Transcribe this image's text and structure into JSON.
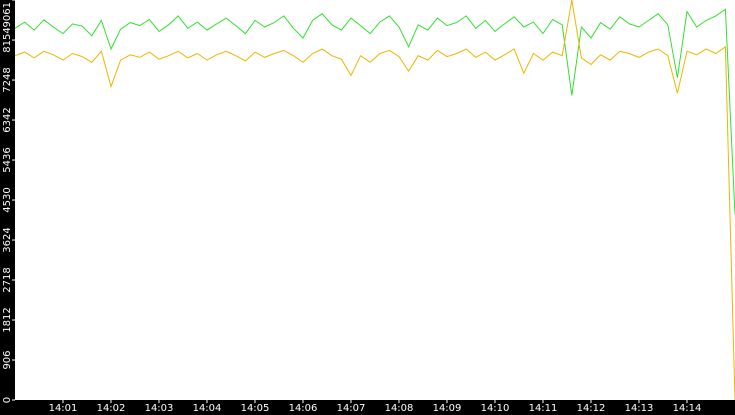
{
  "chart_data": {
    "type": "line",
    "x": [
      0,
      0.2,
      0.4,
      0.6,
      0.8,
      1,
      1.2,
      1.4,
      1.6,
      1.8,
      2,
      2.2,
      2.4,
      2.6,
      2.8,
      3,
      3.2,
      3.4,
      3.6,
      3.8,
      4,
      4.2,
      4.4,
      4.6,
      4.8,
      5,
      5.2,
      5.4,
      5.6,
      5.8,
      6,
      6.2,
      6.4,
      6.6,
      6.8,
      7,
      7.2,
      7.4,
      7.6,
      7.8,
      8,
      8.2,
      8.4,
      8.6,
      8.8,
      9,
      9.2,
      9.4,
      9.6,
      9.8,
      10,
      10.2,
      10.4,
      10.6,
      10.8,
      11,
      11.2,
      11.4,
      11.6,
      11.8,
      12,
      12.2,
      12.4,
      12.6,
      12.8,
      13,
      13.2,
      13.4,
      13.6,
      13.8,
      14,
      14.2,
      14.4,
      14.6,
      14.8,
      15
    ],
    "series": [
      {
        "color": "#33e02f",
        "values": [
          8420,
          8560,
          8380,
          8610,
          8450,
          8300,
          8520,
          8470,
          8250,
          8600,
          7950,
          8400,
          8550,
          8480,
          8620,
          8350,
          8500,
          8700,
          8420,
          8560,
          8380,
          8520,
          8650,
          8480,
          8300,
          8600,
          8450,
          8550,
          8700,
          8420,
          8200,
          8600,
          8750,
          8500,
          8380,
          8650,
          8480,
          8300,
          8560,
          8700,
          8450,
          8000,
          8500,
          8380,
          8650,
          8480,
          8550,
          8700,
          8420,
          8600,
          8350,
          8520,
          8680,
          8450,
          8560,
          8300,
          8620,
          8500,
          6900,
          8450,
          8200,
          8550,
          8400,
          8680,
          8520,
          8450,
          8600,
          8750,
          8500,
          7300,
          8800,
          8450,
          8600,
          8700,
          8850,
          4200
        ]
      },
      {
        "color": "#f0b400",
        "values": [
          7800,
          7880,
          7750,
          7900,
          7820,
          7700,
          7850,
          7780,
          7650,
          7900,
          7100,
          7700,
          7820,
          7760,
          7880,
          7720,
          7800,
          7900,
          7750,
          7850,
          7700,
          7820,
          7900,
          7800,
          7680,
          7880,
          7760,
          7850,
          7920,
          7800,
          7650,
          7850,
          7950,
          7800,
          7720,
          7350,
          7800,
          7650,
          7850,
          7920,
          7780,
          7450,
          7800,
          7700,
          7920,
          7780,
          7850,
          7950,
          7760,
          7880,
          7700,
          7820,
          7950,
          7400,
          7850,
          7700,
          7880,
          7800,
          9061,
          7750,
          7600,
          7820,
          7700,
          7900,
          7850,
          7760,
          7880,
          7950,
          7800,
          6950,
          7900,
          7820,
          7950,
          7850,
          8000,
          0
        ]
      }
    ],
    "xlim": [
      0,
      15
    ],
    "xticks": [
      {
        "value": 1,
        "label": "14:01"
      },
      {
        "value": 2,
        "label": "14:02"
      },
      {
        "value": 3,
        "label": "14:03"
      },
      {
        "value": 4,
        "label": "14:04"
      },
      {
        "value": 5,
        "label": "14:05"
      },
      {
        "value": 6,
        "label": "14:06"
      },
      {
        "value": 7,
        "label": "14:07"
      },
      {
        "value": 8,
        "label": "14:08"
      },
      {
        "value": 9,
        "label": "14:09"
      },
      {
        "value": 10,
        "label": "14:10"
      },
      {
        "value": 11,
        "label": "14:11"
      },
      {
        "value": 12,
        "label": "14:12"
      },
      {
        "value": 13,
        "label": "14:13"
      },
      {
        "value": 14,
        "label": "14:14"
      }
    ],
    "ylim": [
      0,
      9061
    ],
    "yticks": [
      0,
      906,
      1812,
      2718,
      3624,
      4530,
      5436,
      6342,
      7248,
      8154,
      9061
    ]
  }
}
